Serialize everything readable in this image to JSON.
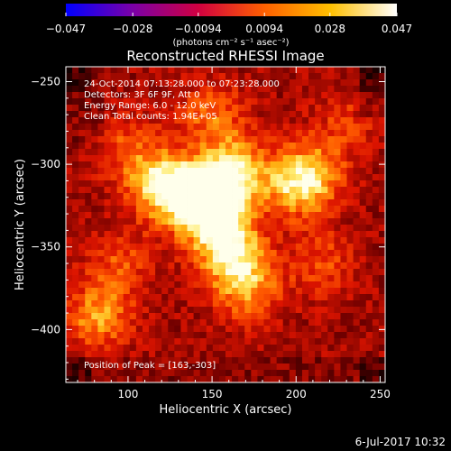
{
  "chart_data": {
    "type": "heatmap",
    "title": "Reconstructed RHESSI Image",
    "xlabel": "Heliocentric X (arcsec)",
    "ylabel": "Heliocentric Y (arcsec)",
    "xlim": [
      63,
      253
    ],
    "ylim": [
      -432,
      -241
    ],
    "x_ticks": [
      100,
      150,
      200,
      250
    ],
    "y_ticks": [
      -250,
      -300,
      -350,
      -400
    ],
    "colorbar": {
      "range": [
        -0.047,
        0.047
      ],
      "ticks": [
        -0.047,
        -0.028,
        -0.0094,
        0.0094,
        0.028,
        0.047
      ],
      "tick_labels": [
        "−0.047",
        "−0.028",
        "−0.0094",
        "0.0094",
        "0.028",
        "0.047"
      ],
      "unit_label": "(photons cm⁻² s⁻¹ asec⁻²)",
      "colors": [
        "#0000ff",
        "#7a00a8",
        "#d00040",
        "#ff6000",
        "#ffc000",
        "#ffffff"
      ]
    },
    "annotations": [
      "24-Oct-2014 07:13:28.000 to 07:23:28.000",
      "Detectors: 3F 6F 9F, Att 0",
      "Energy Range: 6.0 - 12.0 keV",
      "Clean     Total counts: 1.94E+05"
    ],
    "peak_label": "Position of Peak = [163,-303]",
    "peak": [
      163,
      -303
    ],
    "sources": [
      {
        "x": 163,
        "y": -303,
        "amp": 1.0
      },
      {
        "x": 150,
        "y": -322,
        "amp": 0.95
      },
      {
        "x": 133,
        "y": -318,
        "amp": 0.9
      },
      {
        "x": 118,
        "y": -312,
        "amp": 0.8
      },
      {
        "x": 155,
        "y": -342,
        "amp": 0.9
      },
      {
        "x": 165,
        "y": -360,
        "amp": 0.75
      },
      {
        "x": 172,
        "y": -378,
        "amp": 0.55
      },
      {
        "x": 200,
        "y": -313,
        "amp": 0.8
      },
      {
        "x": 210,
        "y": -305,
        "amp": 0.6
      },
      {
        "x": 150,
        "y": -270,
        "amp": 0.55
      },
      {
        "x": 82,
        "y": -392,
        "amp": 0.75
      },
      {
        "x": 95,
        "y": -360,
        "amp": 0.45
      },
      {
        "x": 100,
        "y": -290,
        "amp": 0.45
      },
      {
        "x": 215,
        "y": -360,
        "amp": 0.45
      },
      {
        "x": 230,
        "y": -275,
        "amp": 0.35
      }
    ]
  },
  "footer": {
    "date": "6-Jul-2017 10:32"
  }
}
